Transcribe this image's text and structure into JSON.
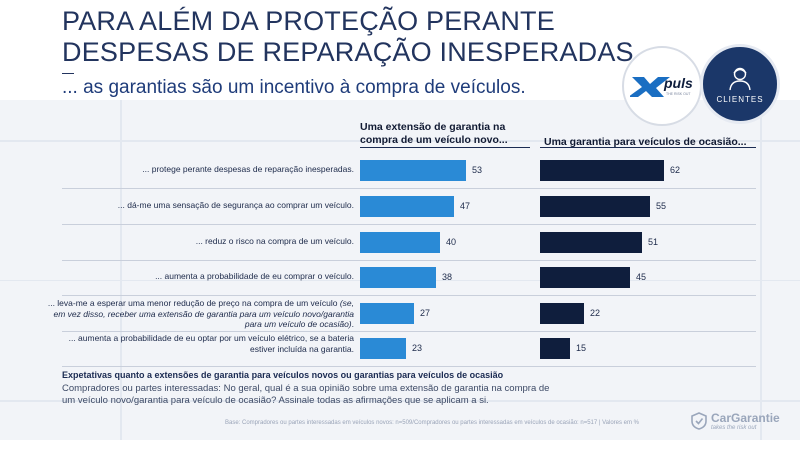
{
  "header": {
    "title_line1": "PARA ALÉM DA PROTEÇÃO PERANTE",
    "title_line2": "DESPESAS DE REPARAÇÃO INESPERADAS...",
    "subtitle": "... as garantias são um incentivo à compra de veículos."
  },
  "logos": {
    "puls_text": "puls",
    "puls_tagline": "THE RISK OUT",
    "clientes_label": "CLIENTES",
    "cargarantie_name": "CarGarantie",
    "cargarantie_tagline": "takes the risk out"
  },
  "chart_data": {
    "type": "bar",
    "orientation": "horizontal",
    "categories": [
      "... protege perante despesas de reparação inesperadas.",
      "... dá-me uma sensação de segurança ao comprar um veículo.",
      "... reduz o risco na compra de um veículo.",
      "... aumenta a probabilidade de eu comprar o veículo.",
      "... leva-me a esperar uma menor redução de preço na compra de um veículo (se, em vez disso, receber uma extensão de garantia para um veículo novo/garantia para um veículo de ocasião).",
      "... aumenta a probabilidade de eu optar por um veículo elétrico, se a bateria estiver incluída na garantia."
    ],
    "series": [
      {
        "name": "Uma extensão de garantia na compra de um veículo novo...",
        "values": [
          53,
          47,
          40,
          38,
          27,
          23
        ],
        "color": "#2a8ad6"
      },
      {
        "name": "Uma garantia para veículos de ocasião...",
        "values": [
          62,
          55,
          51,
          45,
          22,
          15
        ],
        "color": "#0f1e3d"
      }
    ],
    "xlim": [
      0,
      100
    ],
    "grid": false,
    "legend": "column headers"
  },
  "row_labels": [
    {
      "a": "... protege perante despesas de reparação inesperadas.",
      "b": "",
      "c": ""
    },
    {
      "a": "... dá-me uma sensação de segurança ao comprar um veículo.",
      "b": "",
      "c": ""
    },
    {
      "a": "... reduz o risco na compra de um veículo.",
      "b": "",
      "c": ""
    },
    {
      "a": "... aumenta a probabilidade de eu comprar o veículo.",
      "b": "",
      "c": ""
    },
    {
      "a": "... leva-me a esperar uma menor redução de preço na compra de um veículo ",
      "b": "(se, em vez disso, receber uma extensão de garantia para um veículo novo/garantia para um veículo de ocasião)",
      "c": "."
    },
    {
      "a": "... aumenta a probabilidade de eu optar por um veículo elétrico, se a bateria estiver incluída na garantia.",
      "b": "",
      "c": ""
    }
  ],
  "footer": {
    "title": "Expetativas quanto a extensões de garantia para veículos novos ou garantias para veículos de ocasião",
    "question": "Compradores ou partes interessadas: No geral, qual é a sua opinião sobre uma extensão de garantia na compra de um veículo novo/garantia para veículo de ocasião? Assinale todas as afirmações que se aplicam a si.",
    "base": "Base: Compradores ou partes interessadas em veículos novos: n=509/Compradores ou partes interessadas em veículos de ocasião: n=517 | Valores em %"
  }
}
